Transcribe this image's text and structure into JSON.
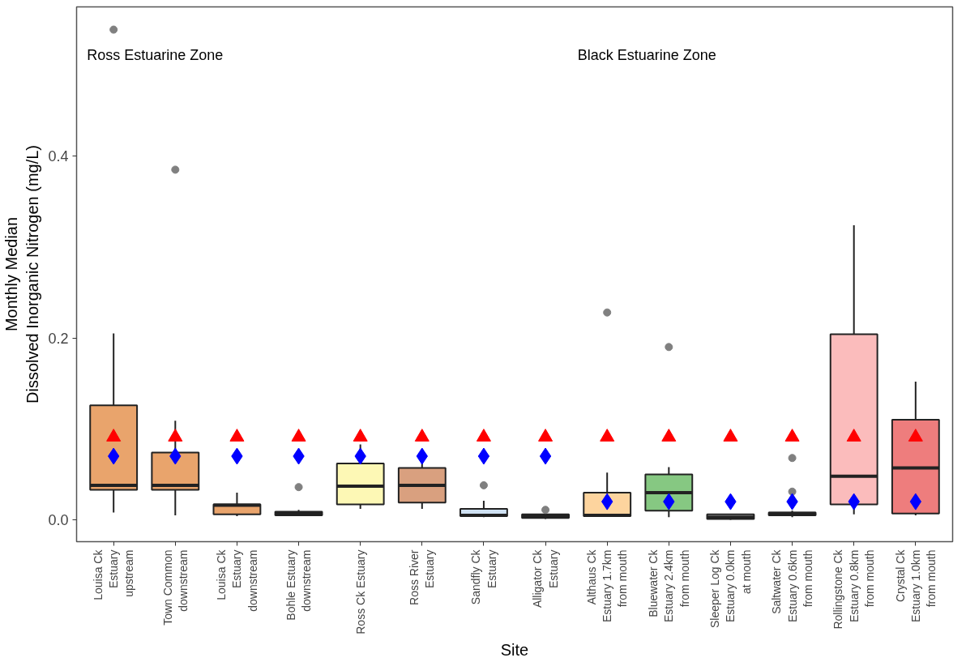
{
  "chart_data": {
    "type": "box",
    "xlabel": "Site",
    "ylabel": "Monthly Median\nDissolved Inorganic Nitrogen (mg/L)",
    "categories": [
      "Louisa Ck\nEstuary\nupstream",
      "Town Common\ndownstream",
      "Louisa Ck\nEstuary\ndownstream",
      "Bohle Estuary\ndownstream",
      "Ross Ck Estuary",
      "Ross River\nEstuary",
      "Sandfly Ck\nEstuary",
      "Alligator Ck\nEstuary",
      "Althaus Ck\nEstuary 1.7km\nfrom mouth",
      "Bluewater Ck\nEstuary 2.4km\nfrom mouth",
      "Sleeper Log Ck\nEstuary 0.0km\nat mouth",
      "Saltwater Ck\nEstuary 0.6km\nfrom mouth",
      "Rollingstone Ck\nEstuary 0.8km\nfrom mouth",
      "Crystal Ck\nEstuary 1.0km\nfrom mouth"
    ],
    "colors": [
      "#e9a46c",
      "#e9a46c",
      "#e9a46c",
      "#e9a46c",
      "#fdf8b5",
      "#d9a07f",
      "#cfe1f2",
      "#c9c9c9",
      "#fdd49e",
      "#86c882",
      "#d9d9d9",
      "#bdbdbd",
      "#fbbcbc",
      "#ee7d7d"
    ],
    "boxes": [
      {
        "low": 0.008,
        "q1": 0.033,
        "median": 0.038,
        "q3": 0.126,
        "high": 0.205,
        "outliers": [
          0.539
        ]
      },
      {
        "low": 0.005,
        "q1": 0.033,
        "median": 0.038,
        "q3": 0.074,
        "high": 0.109,
        "outliers": [
          0.385
        ]
      },
      {
        "low": 0.004,
        "q1": 0.006,
        "median": 0.016,
        "q3": 0.017,
        "high": 0.03
      },
      {
        "low": 0.004,
        "q1": 0.005,
        "median": 0.007,
        "q3": 0.009,
        "high": 0.011,
        "outliers": [
          0.036
        ]
      },
      {
        "low": 0.012,
        "q1": 0.017,
        "median": 0.037,
        "q3": 0.062,
        "high": 0.083
      },
      {
        "low": 0.012,
        "q1": 0.019,
        "median": 0.038,
        "q3": 0.057,
        "high": 0.068
      },
      {
        "low": 0.003,
        "q1": 0.004,
        "median": 0.005,
        "q3": 0.012,
        "high": 0.021,
        "outliers": [
          0.038
        ]
      },
      {
        "low": 0.001,
        "q1": 0.002,
        "median": 0.004,
        "q3": 0.006,
        "high": 0.007,
        "outliers": [
          0.011
        ]
      },
      {
        "low": 0.004,
        "q1": 0.004,
        "median": 0.005,
        "q3": 0.03,
        "high": 0.052,
        "outliers": [
          0.228
        ]
      },
      {
        "low": 0.003,
        "q1": 0.01,
        "median": 0.03,
        "q3": 0.05,
        "high": 0.058,
        "outliers": [
          0.19
        ]
      },
      {
        "low": 0.0,
        "q1": 0.001,
        "median": 0.003,
        "q3": 0.006,
        "high": 0.006
      },
      {
        "low": 0.003,
        "q1": 0.005,
        "median": 0.007,
        "q3": 0.008,
        "high": 0.01,
        "outliers": [
          0.031,
          0.068
        ]
      },
      {
        "low": 0.006,
        "q1": 0.017,
        "median": 0.048,
        "q3": 0.204,
        "high": 0.324
      },
      {
        "low": 0.005,
        "q1": 0.007,
        "median": 0.057,
        "q3": 0.11,
        "high": 0.152
      }
    ],
    "series": [
      {
        "type": "scatter",
        "marker": "triangle",
        "color": "#ff0000",
        "x": [
          "Louisa Ck\nEstuary\nupstream",
          "Town Common\ndownstream",
          "Louisa Ck\nEstuary\ndownstream",
          "Bohle Estuary\ndownstream",
          "Ross Ck Estuary",
          "Ross River\nEstuary",
          "Sandfly Ck\nEstuary",
          "Alligator Ck\nEstuary",
          "Althaus Ck\nEstuary 1.7km\nfrom mouth",
          "Bluewater Ck\nEstuary 2.4km\nfrom mouth",
          "Sleeper Log Ck\nEstuary 0.0km\nat mouth",
          "Saltwater Ck\nEstuary 0.6km\nfrom mouth",
          "Rollingstone Ck\nEstuary 0.8km\nfrom mouth",
          "Crystal Ck\nEstuary 1.0km\nfrom mouth"
        ],
        "values": [
          0.091,
          0.091,
          0.091,
          0.091,
          0.091,
          0.091,
          0.091,
          0.091,
          0.091,
          0.091,
          0.091,
          0.091,
          0.091,
          0.091
        ]
      },
      {
        "type": "scatter",
        "marker": "diamond",
        "color": "#0000ff",
        "x": [
          "Louisa Ck\nEstuary\nupstream",
          "Town Common\ndownstream",
          "Louisa Ck\nEstuary\ndownstream",
          "Bohle Estuary\ndownstream",
          "Ross Ck Estuary",
          "Ross River\nEstuary",
          "Sandfly Ck\nEstuary",
          "Alligator Ck\nEstuary",
          "Althaus Ck\nEstuary 1.7km\nfrom mouth",
          "Bluewater Ck\nEstuary 2.4km\nfrom mouth",
          "Sleeper Log Ck\nEstuary 0.0km\nat mouth",
          "Saltwater Ck\nEstuary 0.6km\nfrom mouth",
          "Rollingstone Ck\nEstuary 0.8km\nfrom mouth",
          "Crystal Ck\nEstuary 1.0km\nfrom mouth"
        ],
        "values": [
          0.07,
          0.07,
          0.07,
          0.07,
          0.07,
          0.07,
          0.07,
          0.07,
          0.02,
          0.02,
          0.02,
          0.02,
          0.02,
          0.02
        ]
      }
    ],
    "annotations": [
      "Ross Estuarine Zone",
      "Black Estuarine Zone"
    ],
    "ylim": [
      -0.024,
      0.564
    ],
    "yticks": [
      {
        "value": 0,
        "label": "0.0"
      },
      {
        "value": 0.2,
        "label": "0.2"
      },
      {
        "value": 0.4,
        "label": "0.4"
      }
    ],
    "grid": false
  }
}
